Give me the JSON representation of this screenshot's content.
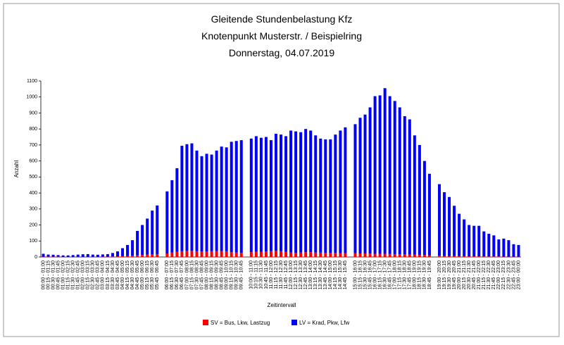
{
  "chart_data": {
    "type": "stacked_bar",
    "title": "Gleitende Stundenbelastung Kfz",
    "subtitle": "Knotenpunkt Musterstr. / Beispielring",
    "date_line": "Donnerstag, 04.07.2019",
    "y_label": "Anzahl",
    "x_label": "Zeitintervall",
    "ylim": [
      0,
      1100
    ],
    "yticks": [
      0,
      100,
      200,
      300,
      400,
      500,
      600,
      700,
      800,
      900,
      1000,
      1100
    ],
    "grid": false,
    "legend": "bottom",
    "categories": [
      "00:00 - 01:00",
      "00:15 - 01:15",
      "00:30 - 01:30",
      "00:45 - 01:45",
      "01:00 - 02:00",
      "01:15 - 02:15",
      "01:30 - 02:30",
      "01:45 - 02:45",
      "02:00 - 03:00",
      "02:15 - 03:15",
      "02:30 - 03:30",
      "02:45 - 03:45",
      "03:00 - 04:00",
      "03:15 - 04:15",
      "03:30 - 04:30",
      "03:45 - 04:45",
      "04:00 - 05:00",
      "04:15 - 05:15",
      "04:30 - 05:30",
      "04:45 - 05:45",
      "05:00 - 06:00",
      "05:15 - 06:15",
      "05:30 - 06:30",
      "05:45 - 06:45",
      null,
      "06:00 - 07:00",
      "06:15 - 07:15",
      "06:30 - 07:30",
      "06:45 - 07:45",
      "07:00 - 08:00",
      "07:15 - 08:15",
      "07:30 - 08:30",
      "07:45 - 08:45",
      "08:00 - 09:00",
      "08:15 - 09:15",
      "08:30 - 09:30",
      "08:45 - 09:45",
      "09:00 - 10:00",
      "09:15 - 10:15",
      "09:30 - 10:30",
      "09:45 - 10:45",
      null,
      "10:00 - 11:00",
      "10:15 - 11:15",
      "10:30 - 11:30",
      "10:45 - 11:45",
      "11:00 - 12:00",
      "11:15 - 12:15",
      "11:30 - 12:30",
      "11:45 - 12:45",
      "12:00 - 13:00",
      "12:15 - 13:15",
      "12:30 - 13:30",
      "12:45 - 13:45",
      "13:00 - 14:00",
      "13:15 - 14:15",
      "13:30 - 14:30",
      "13:45 - 14:45",
      "14:00 - 15:00",
      "14:15 - 15:15",
      "14:30 - 15:30",
      "14:45 - 15:45",
      null,
      "15:00 - 16:00",
      "15:15 - 16:15",
      "15:30 - 16:30",
      "15:45 - 16:45",
      "16:00 - 17:00",
      "16:15 - 17:15",
      "16:30 - 17:30",
      "16:45 - 17:45",
      "17:00 - 18:00",
      "17:15 - 18:15",
      "17:30 - 18:30",
      "17:45 - 18:45",
      "18:00 - 19:00",
      "18:15 - 19:15",
      "18:30 - 19:30",
      "18:45 - 19:45",
      null,
      "19:00 - 20:00",
      "19:15 - 20:15",
      "19:30 - 20:30",
      "19:45 - 20:45",
      "20:00 - 21:00",
      "20:15 - 21:15",
      "20:30 - 21:30",
      "20:45 - 21:45",
      "21:00 - 22:00",
      "21:15 - 22:15",
      "21:30 - 22:30",
      "21:45 - 22:45",
      "22:00 - 23:00",
      "22:15 - 23:15",
      "22:30 - 23:30",
      "22:45 - 23:45",
      "23:00 - 00:00"
    ],
    "series": [
      {
        "name": "SV = Bus, Lkw, Lastzug",
        "color": "#ff0000",
        "values": [
          2,
          2,
          2,
          2,
          1,
          1,
          1,
          1,
          1,
          1,
          1,
          1,
          2,
          2,
          3,
          4,
          5,
          6,
          8,
          10,
          12,
          14,
          16,
          18,
          null,
          22,
          28,
          32,
          36,
          38,
          38,
          36,
          35,
          35,
          36,
          37,
          37,
          36,
          30,
          28,
          26,
          null,
          30,
          32,
          33,
          35,
          36,
          38,
          36,
          32,
          28,
          26,
          28,
          30,
          30,
          28,
          27,
          26,
          25,
          25,
          24,
          24,
          null,
          24,
          22,
          22,
          21,
          20,
          20,
          20,
          19,
          18,
          17,
          16,
          15,
          14,
          13,
          12,
          11,
          null,
          8,
          7,
          6,
          6,
          5,
          5,
          4,
          4,
          4,
          3,
          3,
          3,
          3,
          2,
          2,
          2,
          2
        ]
      },
      {
        "name": "LV = Krad, Pkw, Lfw",
        "color": "#0000ff",
        "values": [
          18,
          13,
          12,
          10,
          9,
          9,
          11,
          14,
          16,
          17,
          14,
          13,
          14,
          16,
          22,
          31,
          50,
          69,
          97,
          153,
          188,
          226,
          274,
          304,
          null,
          388,
          452,
          523,
          659,
          667,
          672,
          629,
          595,
          610,
          604,
          628,
          653,
          649,
          690,
          697,
          704,
          null,
          710,
          723,
          712,
          715,
          694,
          732,
          729,
          723,
          762,
          759,
          752,
          770,
          760,
          732,
          713,
          709,
          710,
          740,
          766,
          786,
          null,
          806,
          848,
          868,
          914,
          985,
          990,
          1035,
          986,
          957,
          918,
          864,
          845,
          746,
          687,
          588,
          509,
          null,
          447,
          398,
          369,
          314,
          265,
          230,
          196,
          191,
          191,
          157,
          142,
          132,
          107,
          113,
          103,
          78,
          73
        ]
      }
    ]
  }
}
